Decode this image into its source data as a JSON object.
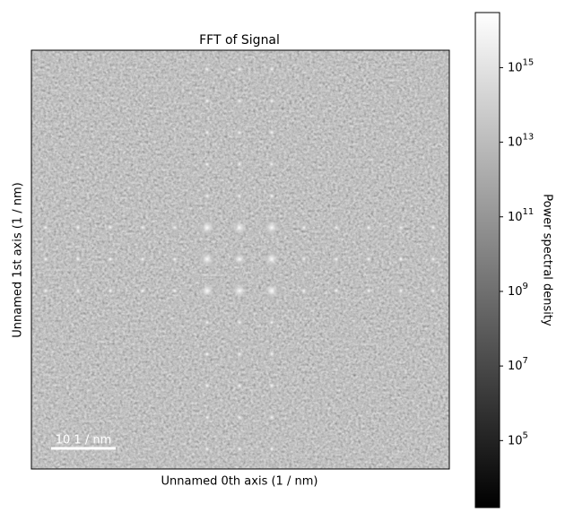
{
  "chart_data": {
    "type": "image",
    "title": "FFT of  Signal",
    "xlabel": "Unnamed 0th axis (1 / nm)",
    "ylabel": "Unnamed 1st axis (1 / nm)",
    "scalebar_label": "10 1 / nm",
    "colormap": "gray",
    "colorbar": {
      "label": "Power spectral density",
      "log": true,
      "lim": [
        1600,
        30000000000000000
      ],
      "ticks": [
        {
          "value": 100000,
          "label": "10",
          "exponent": "5"
        },
        {
          "value": 10000000,
          "label": "10",
          "exponent": "7"
        },
        {
          "value": 1000000000,
          "label": "10",
          "exponent": "9"
        },
        {
          "value": 100000000000,
          "label": "10",
          "exponent": "11"
        },
        {
          "value": 10000000000000,
          "label": "10",
          "exponent": "13"
        },
        {
          "value": 1000000000000000,
          "label": "10",
          "exponent": "15"
        }
      ]
    }
  }
}
